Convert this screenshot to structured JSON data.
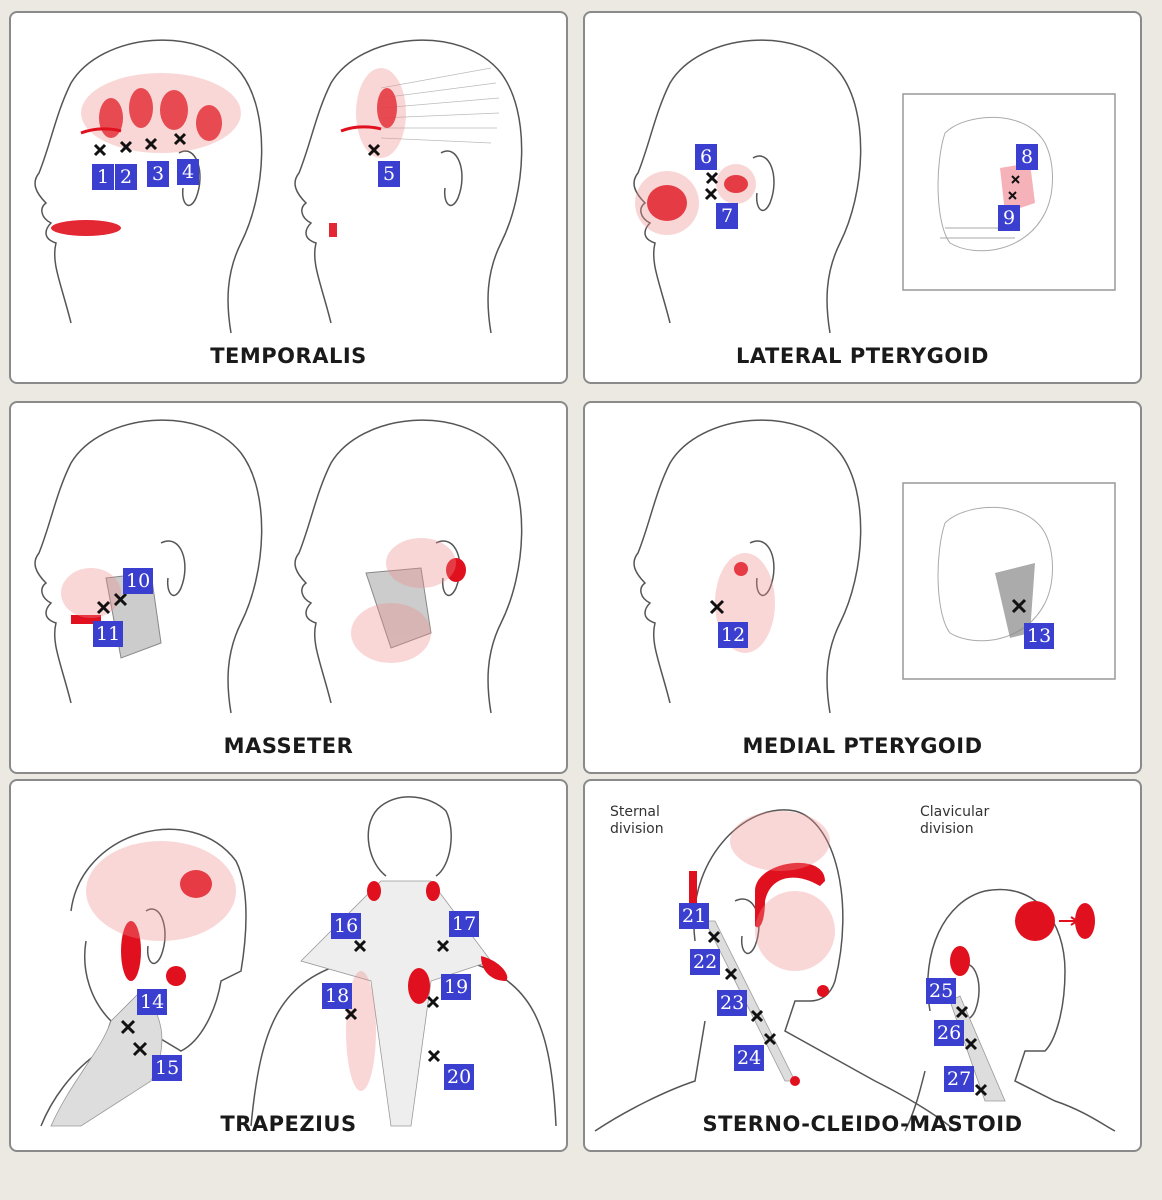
{
  "panels": [
    {
      "key": "temporalis",
      "title": "TEMPORALIS",
      "badges": [
        "1",
        "2",
        "3",
        "4",
        "5"
      ]
    },
    {
      "key": "lateral",
      "title": "LATERAL PTERYGOID",
      "badges": [
        "6",
        "7",
        "8",
        "9"
      ]
    },
    {
      "key": "masseter",
      "title": "MASSETER",
      "badges": [
        "10",
        "11"
      ]
    },
    {
      "key": "medial",
      "title": "MEDIAL PTERYGOID",
      "badges": [
        "12",
        "13"
      ]
    },
    {
      "key": "trapezius",
      "title": "TRAPEZIUS",
      "badges": [
        "14",
        "15",
        "16",
        "17",
        "18",
        "19",
        "20"
      ]
    },
    {
      "key": "scm",
      "title": "STERNO-CLEIDO-MASTOID",
      "badges": [
        "21",
        "22",
        "23",
        "24",
        "25",
        "26",
        "27"
      ],
      "captions": {
        "sternal": "Sternal\ndivision",
        "clavicular": "Clavicular\ndivision"
      }
    }
  ],
  "colors": {
    "pain": "#e0101e",
    "badge": "#3b3fcf",
    "line": "#555555",
    "border": "#8a8a8a"
  }
}
